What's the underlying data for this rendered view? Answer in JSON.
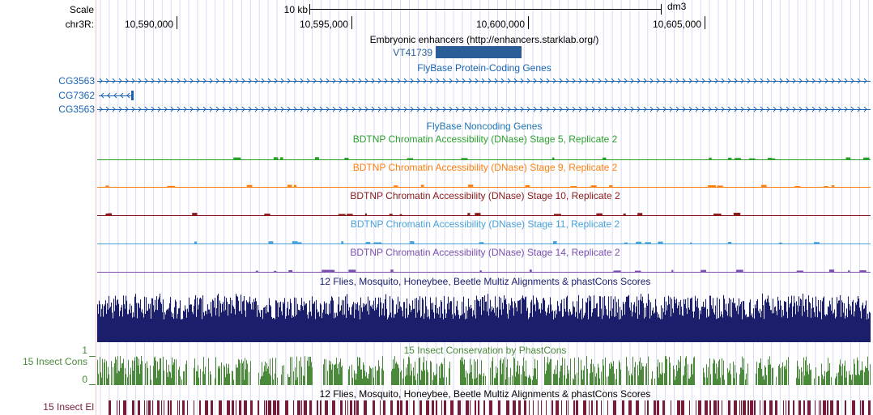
{
  "header": {
    "scale_label": "Scale",
    "chrom_label": "chr3R:",
    "scalebar_text": "10 kb",
    "assembly": "dm3",
    "ticks": [
      "10,590,000",
      "10,595,000",
      "10,600,000",
      "10,605,000"
    ]
  },
  "enhancers": {
    "title": "Embryonic enhancers (http://enhancers.starklab.org/)",
    "feature_label": "VT41739",
    "color": "#2b5e97"
  },
  "genes": {
    "title": "FlyBase Protein-Coding Genes",
    "color": "#1a64b4",
    "rows": [
      {
        "label": "CG3563",
        "strand": "+"
      },
      {
        "label": "CG7362",
        "strand": "-"
      },
      {
        "label": "CG3563",
        "strand": "+"
      }
    ]
  },
  "noncoding": {
    "title": "FlyBase Noncoding Genes",
    "color": "#1f77b4"
  },
  "dnase_tracks": [
    {
      "title": "BDTNP Chromatin Accessibility (DNase) Stage 5, Replicate 2",
      "color": "#2ca02c"
    },
    {
      "title": "BDTNP Chromatin Accessibility (DNase) Stage 9, Replicate 2",
      "color": "#ff7f0e"
    },
    {
      "title": "BDTNP Chromatin Accessibility (DNase) Stage 10, Replicate 2",
      "color": "#8b1a1a"
    },
    {
      "title": "BDTNP Chromatin Accessibility (DNase) Stage 11, Replicate 2",
      "color": "#4aa3d8"
    },
    {
      "title": "BDTNP Chromatin Accessibility (DNase) Stage 14, Replicate 2",
      "color": "#7b4fb0"
    }
  ],
  "multiz": {
    "title": "12 Flies, Mosquito, Honeybee, Beetle Multiz Alignments & phastCons Scores",
    "color": "#1b1e6b"
  },
  "insect_cons": {
    "title": "15 Insect Conservation by PhastCons",
    "track_label": "15 Insect Cons",
    "y_max": "1",
    "y_min": "0",
    "color": "#4a8a3a"
  },
  "multiz2": {
    "title": "12 Flies, Mosquito, Honeybee, Beetle Multiz Alignments & phastCons Scores",
    "color": "#000000"
  },
  "insect_el": {
    "track_label": "15 Insect El",
    "color": "#7a1b3a"
  }
}
